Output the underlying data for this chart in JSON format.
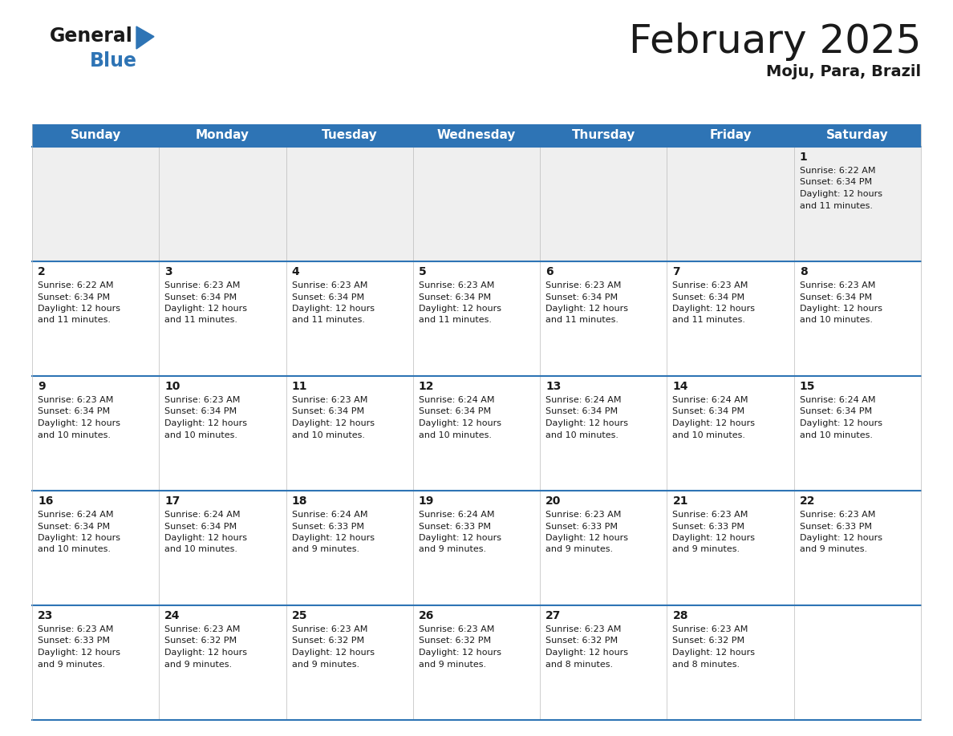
{
  "title": "February 2025",
  "subtitle": "Moju, Para, Brazil",
  "header_color": "#2E74B5",
  "header_text_color": "#FFFFFF",
  "cell_bg_light": "#EFEFEF",
  "cell_bg_white": "#FFFFFF",
  "border_color": "#2E74B5",
  "thin_border_color": "#BBBBBB",
  "day_names": [
    "Sunday",
    "Monday",
    "Tuesday",
    "Wednesday",
    "Thursday",
    "Friday",
    "Saturday"
  ],
  "weeks": [
    [
      {
        "day": "",
        "info": ""
      },
      {
        "day": "",
        "info": ""
      },
      {
        "day": "",
        "info": ""
      },
      {
        "day": "",
        "info": ""
      },
      {
        "day": "",
        "info": ""
      },
      {
        "day": "",
        "info": ""
      },
      {
        "day": "1",
        "info": "Sunrise: 6:22 AM\nSunset: 6:34 PM\nDaylight: 12 hours\nand 11 minutes."
      }
    ],
    [
      {
        "day": "2",
        "info": "Sunrise: 6:22 AM\nSunset: 6:34 PM\nDaylight: 12 hours\nand 11 minutes."
      },
      {
        "day": "3",
        "info": "Sunrise: 6:23 AM\nSunset: 6:34 PM\nDaylight: 12 hours\nand 11 minutes."
      },
      {
        "day": "4",
        "info": "Sunrise: 6:23 AM\nSunset: 6:34 PM\nDaylight: 12 hours\nand 11 minutes."
      },
      {
        "day": "5",
        "info": "Sunrise: 6:23 AM\nSunset: 6:34 PM\nDaylight: 12 hours\nand 11 minutes."
      },
      {
        "day": "6",
        "info": "Sunrise: 6:23 AM\nSunset: 6:34 PM\nDaylight: 12 hours\nand 11 minutes."
      },
      {
        "day": "7",
        "info": "Sunrise: 6:23 AM\nSunset: 6:34 PM\nDaylight: 12 hours\nand 11 minutes."
      },
      {
        "day": "8",
        "info": "Sunrise: 6:23 AM\nSunset: 6:34 PM\nDaylight: 12 hours\nand 10 minutes."
      }
    ],
    [
      {
        "day": "9",
        "info": "Sunrise: 6:23 AM\nSunset: 6:34 PM\nDaylight: 12 hours\nand 10 minutes."
      },
      {
        "day": "10",
        "info": "Sunrise: 6:23 AM\nSunset: 6:34 PM\nDaylight: 12 hours\nand 10 minutes."
      },
      {
        "day": "11",
        "info": "Sunrise: 6:23 AM\nSunset: 6:34 PM\nDaylight: 12 hours\nand 10 minutes."
      },
      {
        "day": "12",
        "info": "Sunrise: 6:24 AM\nSunset: 6:34 PM\nDaylight: 12 hours\nand 10 minutes."
      },
      {
        "day": "13",
        "info": "Sunrise: 6:24 AM\nSunset: 6:34 PM\nDaylight: 12 hours\nand 10 minutes."
      },
      {
        "day": "14",
        "info": "Sunrise: 6:24 AM\nSunset: 6:34 PM\nDaylight: 12 hours\nand 10 minutes."
      },
      {
        "day": "15",
        "info": "Sunrise: 6:24 AM\nSunset: 6:34 PM\nDaylight: 12 hours\nand 10 minutes."
      }
    ],
    [
      {
        "day": "16",
        "info": "Sunrise: 6:24 AM\nSunset: 6:34 PM\nDaylight: 12 hours\nand 10 minutes."
      },
      {
        "day": "17",
        "info": "Sunrise: 6:24 AM\nSunset: 6:34 PM\nDaylight: 12 hours\nand 10 minutes."
      },
      {
        "day": "18",
        "info": "Sunrise: 6:24 AM\nSunset: 6:33 PM\nDaylight: 12 hours\nand 9 minutes."
      },
      {
        "day": "19",
        "info": "Sunrise: 6:24 AM\nSunset: 6:33 PM\nDaylight: 12 hours\nand 9 minutes."
      },
      {
        "day": "20",
        "info": "Sunrise: 6:23 AM\nSunset: 6:33 PM\nDaylight: 12 hours\nand 9 minutes."
      },
      {
        "day": "21",
        "info": "Sunrise: 6:23 AM\nSunset: 6:33 PM\nDaylight: 12 hours\nand 9 minutes."
      },
      {
        "day": "22",
        "info": "Sunrise: 6:23 AM\nSunset: 6:33 PM\nDaylight: 12 hours\nand 9 minutes."
      }
    ],
    [
      {
        "day": "23",
        "info": "Sunrise: 6:23 AM\nSunset: 6:33 PM\nDaylight: 12 hours\nand 9 minutes."
      },
      {
        "day": "24",
        "info": "Sunrise: 6:23 AM\nSunset: 6:32 PM\nDaylight: 12 hours\nand 9 minutes."
      },
      {
        "day": "25",
        "info": "Sunrise: 6:23 AM\nSunset: 6:32 PM\nDaylight: 12 hours\nand 9 minutes."
      },
      {
        "day": "26",
        "info": "Sunrise: 6:23 AM\nSunset: 6:32 PM\nDaylight: 12 hours\nand 9 minutes."
      },
      {
        "day": "27",
        "info": "Sunrise: 6:23 AM\nSunset: 6:32 PM\nDaylight: 12 hours\nand 8 minutes."
      },
      {
        "day": "28",
        "info": "Sunrise: 6:23 AM\nSunset: 6:32 PM\nDaylight: 12 hours\nand 8 minutes."
      },
      {
        "day": "",
        "info": ""
      }
    ]
  ],
  "logo_text1": "General",
  "logo_text2": "Blue",
  "logo_color1": "#1a1a1a",
  "logo_color2": "#2E74B5",
  "logo_triangle_color": "#2E74B5",
  "title_fontsize": 36,
  "subtitle_fontsize": 14,
  "header_fontsize": 11,
  "day_num_fontsize": 10,
  "info_fontsize": 8
}
